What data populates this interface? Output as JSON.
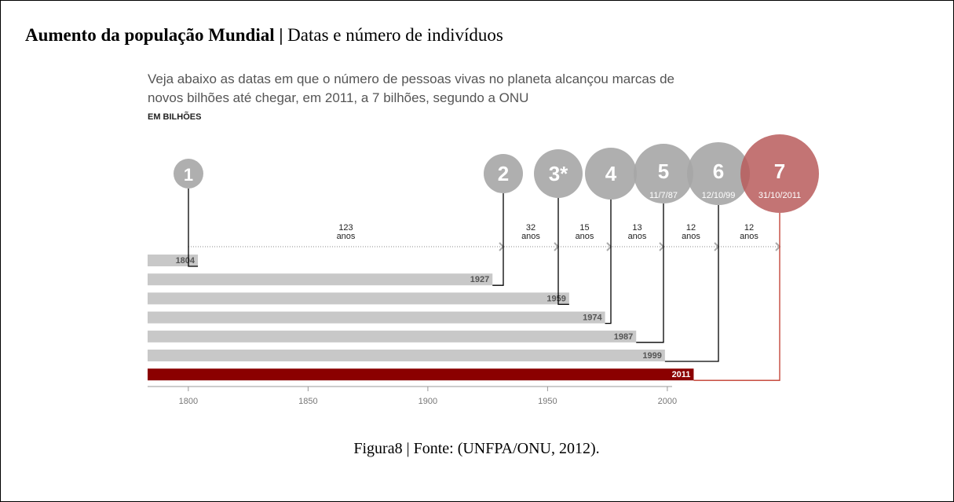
{
  "header": {
    "title_bold": "Aumento da população Mundial |",
    "title_rest": "Datas e número de indivíduos"
  },
  "chart_data": {
    "type": "timeline",
    "subtitle_lines": [
      "Veja abaixo as datas em que o número de pessoas vivas no planeta alcançou marcas de",
      "novos bilhões até chegar, em 2011, a 7 bilhões, segundo a ONU"
    ],
    "unit_label": "EM BILHÕES",
    "categories": [
      "1",
      "2",
      "3*",
      "4",
      "5",
      "6",
      "7"
    ],
    "dates": [
      null,
      null,
      null,
      null,
      "11/7/87",
      "12/10/99",
      "31/10/2011"
    ],
    "values": [
      1804,
      1927,
      1959,
      1974,
      1987,
      1999,
      2011
    ],
    "intervals": [
      123,
      32,
      15,
      13,
      12,
      12
    ],
    "interval_unit": "anos",
    "colors": [
      "#a6a6a6",
      "#a6a6a6",
      "#a6a6a6",
      "#a6a6a6",
      "#a6a6a6",
      "#a6a6a6",
      "#b85c5c"
    ],
    "bar_colors": [
      "#c8c8c8",
      "#c8c8c8",
      "#c8c8c8",
      "#c8c8c8",
      "#c8c8c8",
      "#c8c8c8",
      "#8b0000"
    ],
    "xlim": [
      1783,
      2002
    ],
    "xticks": [
      1800,
      1850,
      1900,
      1950,
      2000
    ]
  },
  "caption": "Figura8 | Fonte: (UNFPA/ONU, 2012)."
}
